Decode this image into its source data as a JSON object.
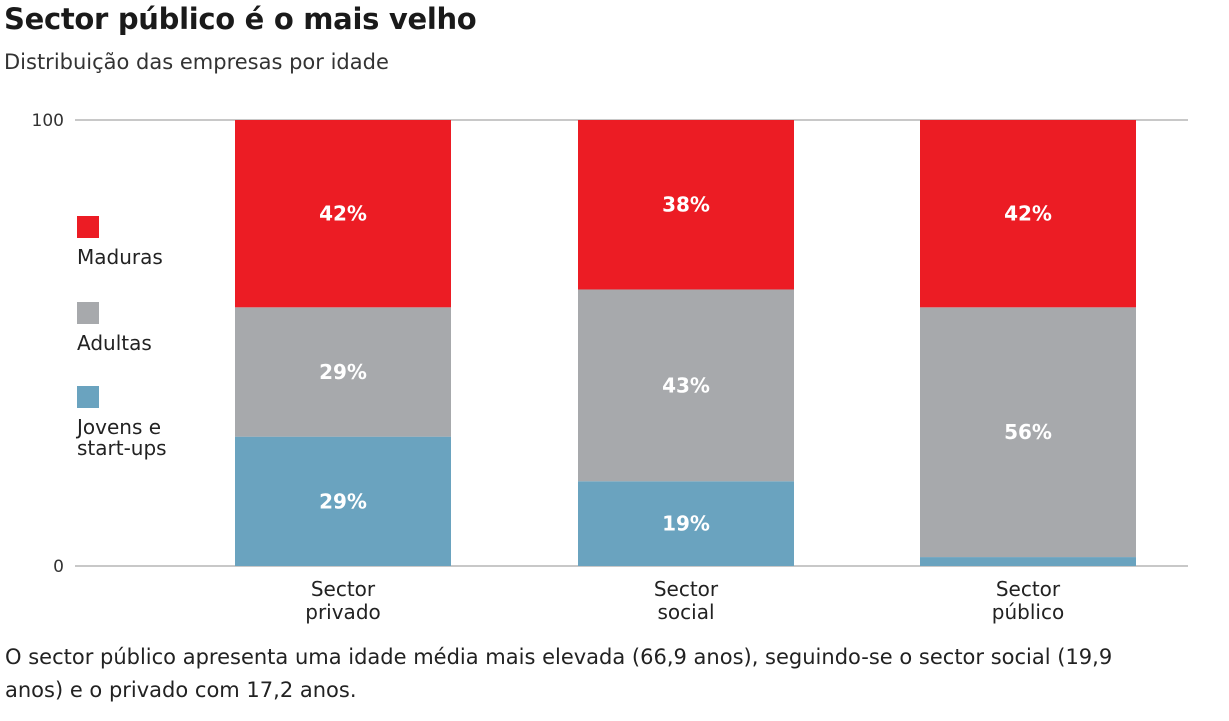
{
  "title": "Sector público é o mais velho",
  "subtitle": "Distribuição das empresas por idade",
  "note": "O sector público apresenta uma idade média mais elevada (66,9 anos), seguindo-se o sector social (19,9 anos) e o privado com 17,2 anos.",
  "chart_data": {
    "type": "bar",
    "stacked": true,
    "title": "Sector público é o mais velho",
    "subtitle": "Distribuição das empresas por idade",
    "xlabel": "",
    "ylabel": "",
    "ylim": [
      0,
      100
    ],
    "yticks": [
      "0",
      "100"
    ],
    "categories": [
      [
        "Sector",
        "privado"
      ],
      [
        "Sector",
        "social"
      ],
      [
        "Sector",
        "público"
      ]
    ],
    "series": [
      {
        "name": "Jovens e start-ups",
        "name_lines": [
          "Jovens e",
          "start-ups"
        ],
        "color": "#6aa3bf",
        "values": [
          29,
          19,
          2
        ],
        "labels": [
          "29%",
          "19%",
          "2%"
        ]
      },
      {
        "name": "Adultas",
        "name_lines": [
          "Adultas"
        ],
        "color": "#a7a9ac",
        "values": [
          29,
          43,
          56
        ],
        "labels": [
          "29%",
          "43%",
          "56%"
        ]
      },
      {
        "name": "Maduras",
        "name_lines": [
          "Maduras"
        ],
        "color": "#ec1c24",
        "values": [
          42,
          38,
          42
        ],
        "labels": [
          "42%",
          "38%",
          "42%"
        ]
      }
    ],
    "legend": "left"
  }
}
